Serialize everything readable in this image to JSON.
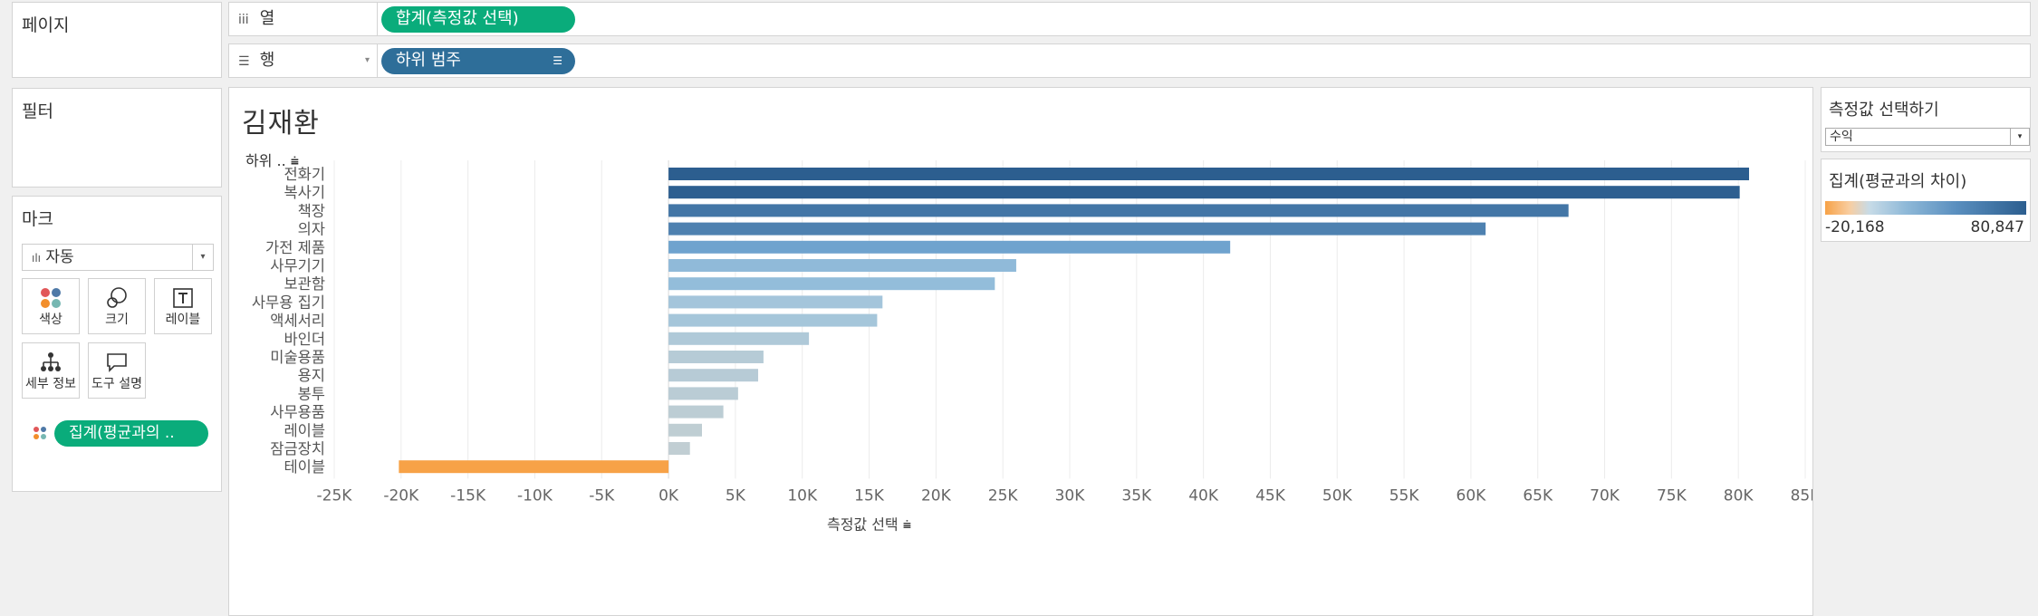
{
  "shelves": {
    "pages_title": "페이지",
    "columns": {
      "label": "열",
      "pill": "합계(측정값 선택)"
    },
    "rows": {
      "label": "행",
      "pill": "하위 범주"
    }
  },
  "filters": {
    "title": "필터"
  },
  "marks": {
    "title": "마크",
    "type": "자동",
    "buttons": [
      {
        "label": "색상",
        "icon": "color-icon"
      },
      {
        "label": "크기",
        "icon": "size-icon"
      },
      {
        "label": "레이블",
        "icon": "label-icon"
      },
      {
        "label": "세부 정보",
        "icon": "detail-icon"
      },
      {
        "label": "도구 설명",
        "icon": "tooltip-icon"
      }
    ],
    "color_pill": "집계(평균과의 .."
  },
  "parameter": {
    "title": "측정값 선택하기",
    "value": "수익"
  },
  "legend": {
    "title": "집계(평균과의 차이)",
    "min_label": "-20,168",
    "max_label": "80,847",
    "low_color": "#f7a247",
    "high_color": "#2c5e8f"
  },
  "chart_data": {
    "type": "bar",
    "orientation": "horizontal",
    "title": "김재환",
    "row_header": "하위 ..",
    "xlabel": "측정값 선택",
    "xlim": [
      -25000,
      85000
    ],
    "tick_step": 5000,
    "tick_labels": [
      "-25K",
      "-20K",
      "-15K",
      "-10K",
      "-5K",
      "0K",
      "5K",
      "10K",
      "15K",
      "20K",
      "25K",
      "30K",
      "35K",
      "40K",
      "45K",
      "50K",
      "55K",
      "60K",
      "65K",
      "70K",
      "75K",
      "80K",
      "85K"
    ],
    "categories": [
      "전화기",
      "복사기",
      "책장",
      "의자",
      "가전 제품",
      "사무기기",
      "보관함",
      "사무용 집기",
      "액세서리",
      "바인더",
      "미술용품",
      "용지",
      "봉투",
      "사무용품",
      "레이블",
      "잠금장치",
      "테이블"
    ],
    "values": [
      80800,
      80100,
      67300,
      61100,
      42000,
      26000,
      24400,
      16000,
      15600,
      10500,
      7100,
      6700,
      5200,
      4100,
      2500,
      1600,
      -20168
    ],
    "gridlines": true
  }
}
